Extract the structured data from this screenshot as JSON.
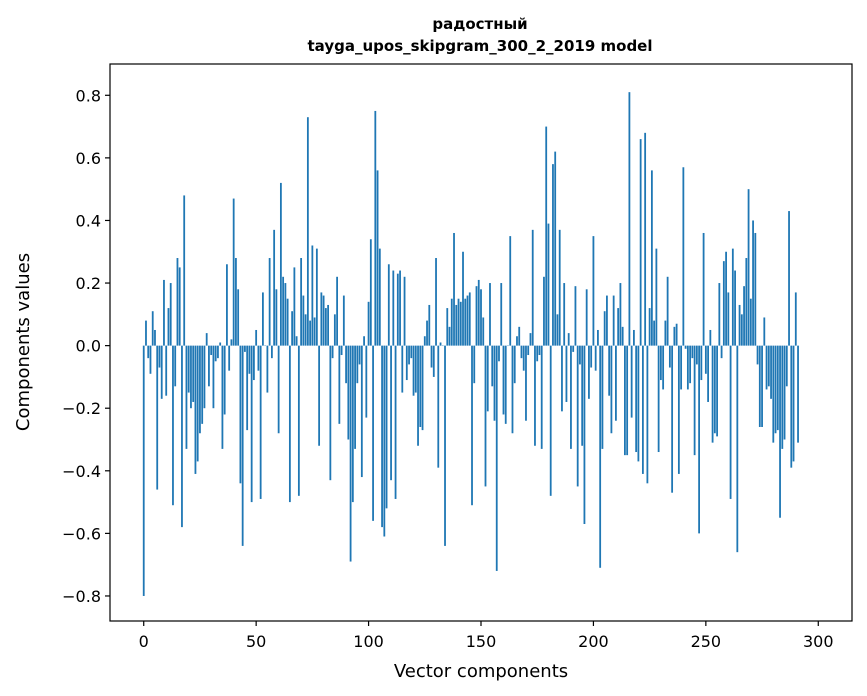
{
  "chart_data": {
    "type": "bar",
    "title": "радостный",
    "subtitle": "tayga_upos_skipgram_300_2_2019 model",
    "xlabel": "Vector components",
    "ylabel": "Components values",
    "xlim": [
      -15,
      315
    ],
    "ylim": [
      -0.88,
      0.9
    ],
    "xticks": [
      0,
      50,
      100,
      150,
      200,
      250,
      300
    ],
    "xtick_labels": [
      "0",
      "50",
      "100",
      "150",
      "200",
      "250",
      "300"
    ],
    "yticks": [
      -0.8,
      -0.6,
      -0.4,
      -0.2,
      0.0,
      0.2,
      0.4,
      0.6,
      0.8
    ],
    "ytick_labels": [
      "−0.8",
      "−0.6",
      "−0.4",
      "−0.2",
      "0.0",
      "0.2",
      "0.4",
      "0.6",
      "0.8"
    ],
    "bar_color": "#1f77b4",
    "values": [
      -0.8,
      0.08,
      -0.04,
      -0.09,
      0.11,
      0.05,
      -0.46,
      -0.07,
      -0.17,
      0.21,
      -0.16,
      0.12,
      0.2,
      -0.51,
      -0.13,
      0.28,
      0.25,
      -0.58,
      0.48,
      -0.33,
      -0.15,
      -0.2,
      -0.18,
      -0.41,
      -0.37,
      -0.28,
      -0.25,
      -0.2,
      0.04,
      -0.13,
      -0.03,
      -0.2,
      -0.05,
      -0.04,
      0.01,
      -0.33,
      -0.22,
      0.26,
      -0.08,
      0.02,
      0.47,
      0.28,
      0.18,
      -0.44,
      -0.64,
      -0.02,
      -0.27,
      -0.09,
      -0.5,
      -0.11,
      0.05,
      -0.08,
      -0.49,
      0.17,
      0.0,
      -0.15,
      0.28,
      -0.04,
      0.37,
      0.18,
      -0.28,
      0.52,
      0.22,
      0.2,
      0.15,
      -0.5,
      0.11,
      0.25,
      0.03,
      -0.48,
      0.28,
      0.16,
      0.1,
      0.73,
      0.08,
      0.32,
      0.09,
      0.31,
      -0.32,
      0.17,
      0.16,
      0.12,
      0.13,
      -0.43,
      -0.04,
      0.1,
      0.22,
      -0.25,
      -0.03,
      0.16,
      -0.12,
      -0.3,
      -0.69,
      -0.5,
      -0.33,
      -0.12,
      -0.06,
      -0.42,
      0.03,
      -0.23,
      0.14,
      0.34,
      -0.56,
      0.75,
      0.56,
      0.31,
      -0.58,
      -0.61,
      -0.52,
      0.26,
      -0.43,
      0.24,
      -0.49,
      0.23,
      0.24,
      -0.15,
      0.22,
      -0.11,
      -0.06,
      -0.04,
      -0.16,
      -0.15,
      -0.32,
      -0.26,
      -0.27,
      0.03,
      0.08,
      0.13,
      -0.07,
      -0.1,
      0.28,
      -0.39,
      0.01,
      0.0,
      -0.64,
      0.12,
      0.06,
      0.15,
      0.36,
      0.13,
      0.15,
      0.14,
      0.3,
      0.15,
      0.16,
      0.17,
      -0.51,
      -0.12,
      0.19,
      0.21,
      0.18,
      0.09,
      -0.45,
      -0.21,
      0.2,
      -0.13,
      -0.24,
      -0.72,
      -0.05,
      0.2,
      -0.22,
      -0.25,
      0.0,
      0.35,
      -0.28,
      -0.12,
      0.03,
      0.06,
      -0.04,
      -0.08,
      -0.24,
      -0.03,
      0.04,
      0.37,
      -0.32,
      -0.05,
      -0.03,
      -0.33,
      0.22,
      0.7,
      0.39,
      -0.48,
      0.58,
      0.62,
      0.1,
      0.37,
      -0.21,
      0.2,
      -0.18,
      0.04,
      -0.33,
      -0.02,
      0.19,
      -0.45,
      -0.06,
      -0.32,
      -0.57,
      0.18,
      -0.17,
      -0.07,
      0.35,
      -0.08,
      0.05,
      -0.71,
      -0.33,
      0.11,
      0.16,
      -0.16,
      -0.28,
      0.16,
      -0.24,
      0.12,
      0.2,
      0.06,
      -0.35,
      -0.35,
      0.81,
      -0.23,
      0.05,
      -0.34,
      -0.37,
      0.66,
      -0.41,
      0.68,
      -0.44,
      0.12,
      0.56,
      0.08,
      0.31,
      -0.34,
      -0.11,
      -0.14,
      0.08,
      0.22,
      -0.07,
      -0.47,
      0.06,
      0.07,
      -0.41,
      -0.14,
      0.57,
      -0.01,
      -0.14,
      -0.12,
      -0.04,
      -0.35,
      -0.06,
      -0.6,
      -0.11,
      0.36,
      -0.09,
      -0.18,
      0.05,
      -0.31,
      -0.28,
      -0.29,
      0.2,
      -0.04,
      0.27,
      0.3,
      0.17,
      -0.49,
      0.31,
      0.24,
      -0.66,
      0.13,
      0.1,
      0.19,
      0.28,
      0.5,
      0.15,
      0.4,
      0.36,
      -0.06,
      -0.26,
      -0.26,
      0.09,
      -0.14,
      -0.13,
      -0.17,
      -0.31,
      -0.28,
      -0.27,
      -0.55,
      -0.33,
      -0.3,
      -0.13,
      0.43,
      -0.39,
      -0.37,
      0.17,
      -0.31
    ]
  }
}
